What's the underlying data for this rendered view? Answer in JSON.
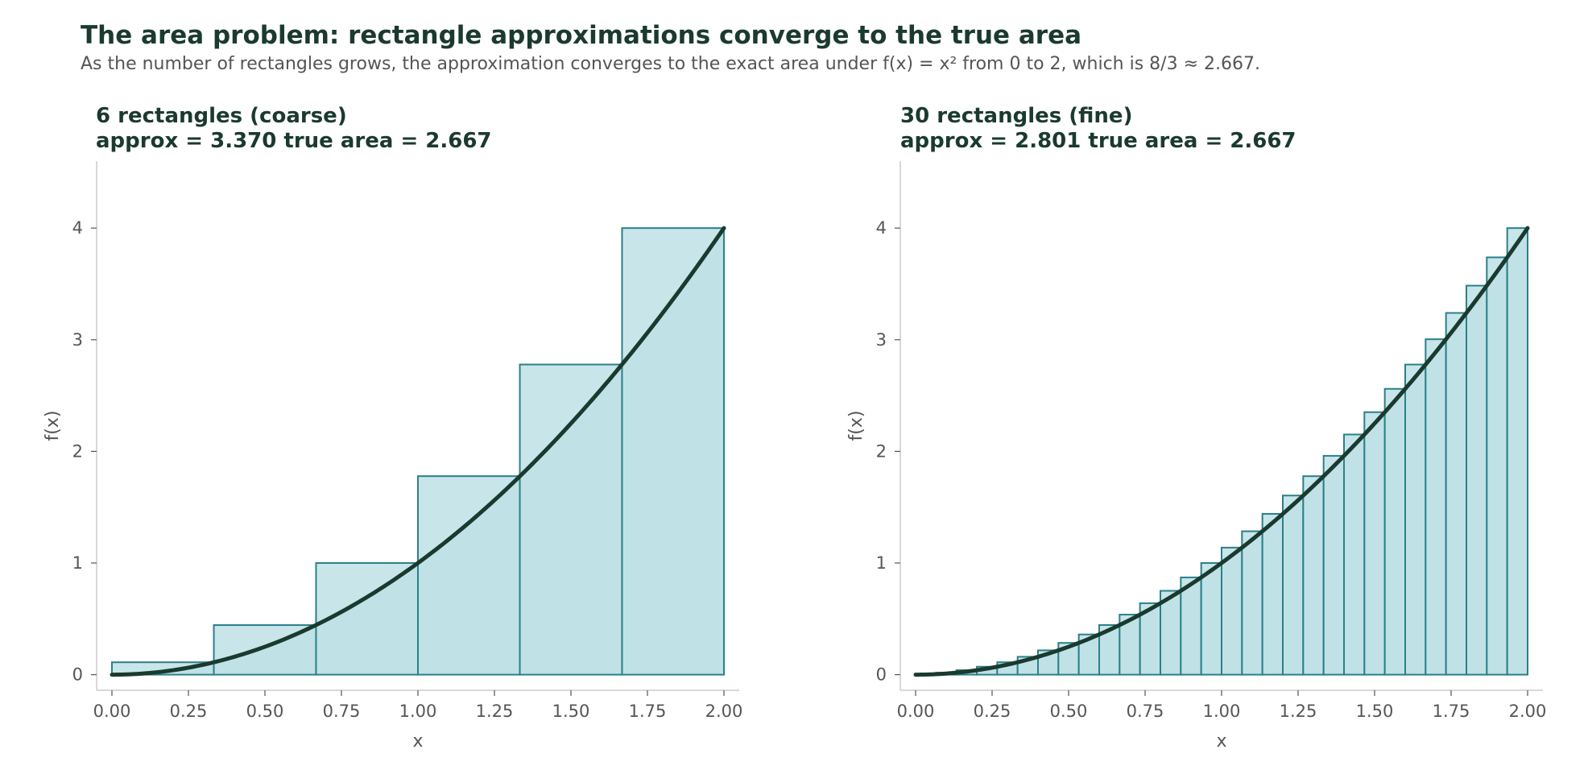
{
  "header": {
    "title": "The area problem: rectangle approximations converge to the true area",
    "subtitle": "As the number of rectangles grows, the approximation converges to the exact area under f(x) = x² from 0 to 2, which is 8/3 ≈ 2.667."
  },
  "colors": {
    "bar_fill": "#c0e2e6",
    "bar_fill_excess": "#c8e6ea",
    "bar_edge": "#2a8089",
    "curve": "#1b3a2f",
    "axis": "#cccccc",
    "text": "#555555",
    "title": "#1b3a2f"
  },
  "chart_data": [
    {
      "type": "bar",
      "title_line1": "6 rectangles (coarse)",
      "title_line2": "approx = 3.370   true area = 2.667",
      "xlabel": "x",
      "ylabel": "f(x)",
      "xlim": [
        -0.05,
        2.05
      ],
      "ylim": [
        -0.14,
        4.6
      ],
      "xticks": [
        "0.00",
        "0.25",
        "0.50",
        "0.75",
        "1.00",
        "1.25",
        "1.50",
        "1.75",
        "2.00"
      ],
      "yticks": [
        "0",
        "1",
        "2",
        "3",
        "4"
      ],
      "function": "x^2",
      "domain": [
        0,
        2
      ],
      "n_rectangles": 6,
      "rule": "right endpoint",
      "bars": [
        {
          "x0": 0.0,
          "x1": 0.333,
          "height": 0.111
        },
        {
          "x0": 0.333,
          "x1": 0.667,
          "height": 0.444
        },
        {
          "x0": 0.667,
          "x1": 1.0,
          "height": 1.0
        },
        {
          "x0": 1.0,
          "x1": 1.333,
          "height": 1.778
        },
        {
          "x0": 1.333,
          "x1": 1.667,
          "height": 2.778
        },
        {
          "x0": 1.667,
          "x1": 2.0,
          "height": 4.0
        }
      ],
      "approx": 3.37,
      "true_area": 2.667
    },
    {
      "type": "bar",
      "title_line1": "30 rectangles (fine)",
      "title_line2": "approx = 2.801   true area = 2.667",
      "xlabel": "x",
      "ylabel": "f(x)",
      "xlim": [
        -0.05,
        2.05
      ],
      "ylim": [
        -0.14,
        4.6
      ],
      "xticks": [
        "0.00",
        "0.25",
        "0.50",
        "0.75",
        "1.00",
        "1.25",
        "1.50",
        "1.75",
        "2.00"
      ],
      "yticks": [
        "0",
        "1",
        "2",
        "3",
        "4"
      ],
      "function": "x^2",
      "domain": [
        0,
        2
      ],
      "n_rectangles": 30,
      "rule": "right endpoint",
      "bar_heights": [
        0.0044,
        0.0178,
        0.04,
        0.0711,
        0.1111,
        0.16,
        0.2178,
        0.2844,
        0.36,
        0.4444,
        0.5378,
        0.64,
        0.7511,
        0.8711,
        1.0,
        1.1378,
        1.2844,
        1.44,
        1.6044,
        1.7778,
        1.96,
        2.1511,
        2.3511,
        2.56,
        2.7778,
        3.0044,
        3.24,
        3.4844,
        3.7378,
        4.0
      ],
      "approx": 2.801,
      "true_area": 2.667
    }
  ]
}
